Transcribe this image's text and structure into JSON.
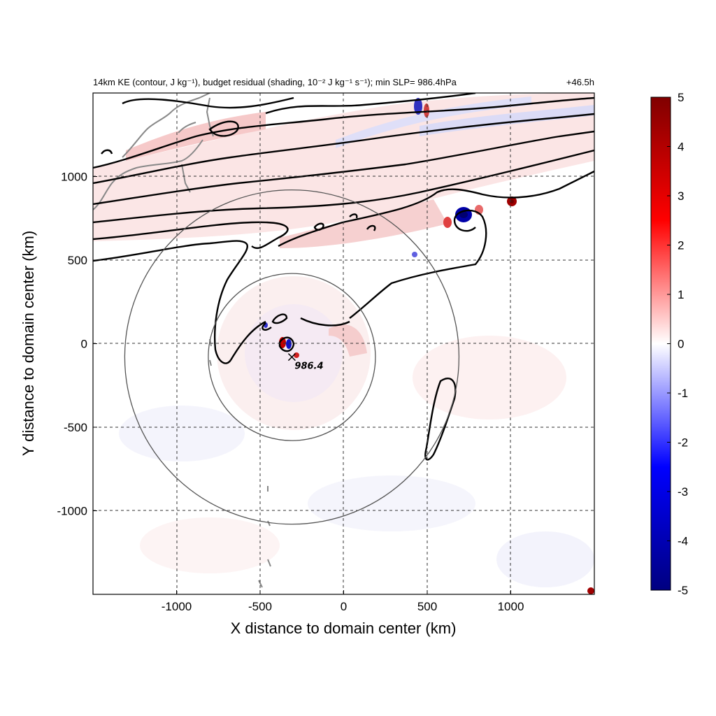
{
  "chart_data": {
    "type": "heatmap",
    "title": "14km KE (contour, J kg⁻¹), budget residual (shading, 10⁻² J kg⁻¹ s⁻¹); min SLP= 986.4hPa",
    "time_label": "+46.5h",
    "xlabel": "X distance to domain center (km)",
    "ylabel": "Y distance to domain center (km)",
    "xlim": [
      -1500,
      1500
    ],
    "ylim": [
      -1500,
      1500
    ],
    "x_ticks": [
      -1000,
      -500,
      0,
      500,
      1000
    ],
    "y_ticks": [
      -1000,
      -500,
      0,
      500,
      1000
    ],
    "x_tick_labels": [
      "-1000",
      "-500",
      "0",
      "500",
      "1000"
    ],
    "y_tick_labels": [
      "-1000",
      "-500",
      "0",
      "500",
      "1000"
    ],
    "grid": true,
    "colorbar": {
      "min": -5,
      "max": 5,
      "ticks": [
        5,
        4,
        3,
        2,
        1,
        0,
        -1,
        -2,
        -3,
        -4,
        -5
      ],
      "tick_labels": [
        "5",
        "4",
        "3",
        "2",
        "1",
        "0",
        "-1",
        "-2",
        "-3",
        "-4",
        "-5"
      ],
      "colors": [
        "#000080",
        "#0000ff",
        "#ffffff",
        "#ff0000",
        "#800000"
      ]
    },
    "storm_center": {
      "x": -310,
      "y": -80,
      "label": "986.4",
      "min_slp_hpa": 986.4
    },
    "range_rings_km": [
      500,
      1000
    ],
    "colors": {
      "contour": "#000000",
      "ring": "#555555",
      "coastline": "#888888",
      "grid": "#444444"
    }
  }
}
